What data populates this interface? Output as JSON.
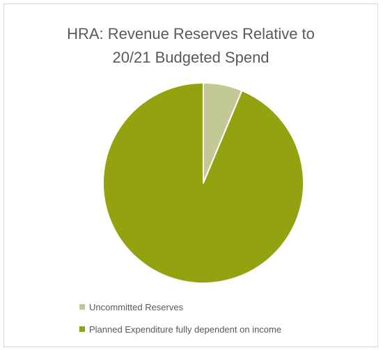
{
  "chart_data": {
    "type": "pie",
    "title_lines": [
      "HRA: Revenue Reserves Relative to",
      "20/21 Budgeted Spend"
    ],
    "slices": [
      {
        "name": "Uncommitted Reserves",
        "value": 6.3,
        "color": "#c3c996"
      },
      {
        "name": "Planned Expenditure fully dependent on income",
        "value": 93.7,
        "color": "#93a20f"
      }
    ],
    "start_angle_deg": 0,
    "direction": "clockwise",
    "legend_position": "bottom-left",
    "slice_border_color": "#ffffff"
  }
}
